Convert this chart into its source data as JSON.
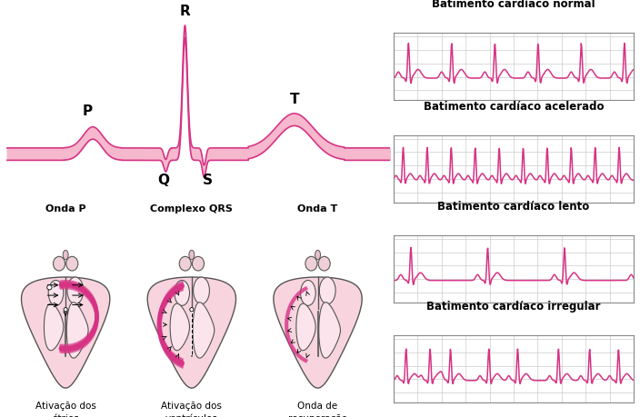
{
  "ecg_color": "#d63384",
  "ecg_fill": "#e8739a",
  "light_pink": "#f5b8cc",
  "very_light_pink": "#fce4ec",
  "dark_pink": "#c0406a",
  "grid_color": "#cccccc",
  "bg_color": "#ffffff",
  "text_color": "#000000",
  "panel_titles": [
    "Batimento cardíaco normal",
    "Batimento cardíaco acelerado",
    "Batimento cardíaco lento",
    "Batimento cardíaco irregular"
  ],
  "heart_labels_top": [
    "Onda P",
    "Complexo QRS",
    "Onda T"
  ],
  "heart_labels_bottom": [
    "Ativação dos\nátrios",
    "Ativação dos\nventrículos",
    "Onda de\nrecuperação"
  ]
}
